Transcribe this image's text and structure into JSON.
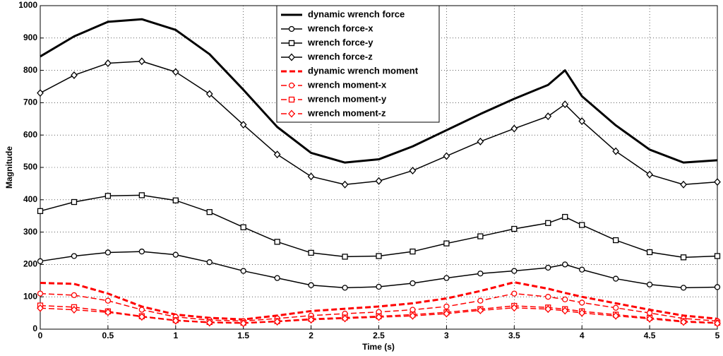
{
  "chart_data": {
    "type": "line",
    "xlabel": "Time (s)",
    "ylabel": "Magnitude",
    "x": [
      0,
      0.25,
      0.5,
      0.75,
      1,
      1.25,
      1.5,
      1.75,
      2,
      2.25,
      2.5,
      2.75,
      3,
      3.25,
      3.5,
      3.75,
      3.875,
      4,
      4.25,
      4.5,
      4.75,
      5
    ],
    "xlim": [
      0,
      5
    ],
    "xticks": [
      0,
      0.5,
      1,
      1.5,
      2,
      2.5,
      3,
      3.5,
      4,
      4.5,
      5
    ],
    "ylim": [
      0,
      1000
    ],
    "yticks": [
      0,
      100,
      200,
      300,
      400,
      500,
      600,
      700,
      800,
      900,
      1000
    ],
    "grid": true,
    "legend": "top-center",
    "series": [
      {
        "name": "dynamic wrench force",
        "color": "#000000",
        "linestyle": "solid",
        "linewidth": 3,
        "marker": null,
        "values": [
          843,
          905,
          950,
          958,
          925,
          850,
          740,
          625,
          545,
          515,
          525,
          565,
          615,
          665,
          712,
          755,
          800,
          720,
          630,
          555,
          515,
          522
        ]
      },
      {
        "name": "wrench force-x",
        "color": "#000000",
        "linestyle": "solid",
        "linewidth": 1.5,
        "marker": "circle",
        "values": [
          210,
          226,
          237,
          240,
          230,
          207,
          180,
          158,
          136,
          128,
          131,
          142,
          158,
          172,
          180,
          190,
          200,
          184,
          156,
          138,
          128,
          130
        ]
      },
      {
        "name": "wrench force-y",
        "color": "#000000",
        "linestyle": "solid",
        "linewidth": 1.5,
        "marker": "square",
        "values": [
          365,
          393,
          412,
          414,
          398,
          362,
          315,
          270,
          236,
          224,
          226,
          240,
          265,
          287,
          310,
          328,
          347,
          322,
          275,
          238,
          222,
          226
        ]
      },
      {
        "name": "wrench force-z",
        "color": "#000000",
        "linestyle": "solid",
        "linewidth": 1.5,
        "marker": "diamond",
        "values": [
          730,
          785,
          822,
          828,
          795,
          727,
          632,
          540,
          472,
          447,
          458,
          490,
          535,
          580,
          620,
          658,
          695,
          643,
          550,
          478,
          447,
          455
        ]
      },
      {
        "name": "dynamic wrench moment",
        "color": "#ff0000",
        "linestyle": "dashed",
        "linewidth": 3,
        "marker": null,
        "values": [
          143,
          140,
          110,
          70,
          45,
          35,
          30,
          42,
          56,
          63,
          70,
          80,
          95,
          118,
          145,
          125,
          112,
          100,
          80,
          60,
          42,
          32
        ]
      },
      {
        "name": "wrench moment-x",
        "color": "#ff0000",
        "linestyle": "dashed",
        "linewidth": 1.5,
        "marker": "circle",
        "values": [
          110,
          105,
          88,
          60,
          38,
          28,
          25,
          33,
          42,
          48,
          53,
          60,
          70,
          88,
          110,
          100,
          92,
          82,
          66,
          50,
          33,
          25
        ]
      },
      {
        "name": "wrench moment-y",
        "color": "#ff0000",
        "linestyle": "dashed",
        "linewidth": 1.5,
        "marker": "square",
        "values": [
          73,
          68,
          55,
          40,
          28,
          22,
          20,
          25,
          32,
          36,
          40,
          45,
          52,
          62,
          72,
          67,
          62,
          55,
          45,
          35,
          25,
          20
        ]
      },
      {
        "name": "wrench moment-z",
        "color": "#ff0000",
        "linestyle": "dashed",
        "linewidth": 1.5,
        "marker": "diamond",
        "values": [
          65,
          60,
          52,
          38,
          26,
          20,
          18,
          23,
          29,
          33,
          37,
          41,
          48,
          58,
          66,
          62,
          57,
          50,
          41,
          32,
          22,
          18
        ]
      }
    ]
  }
}
